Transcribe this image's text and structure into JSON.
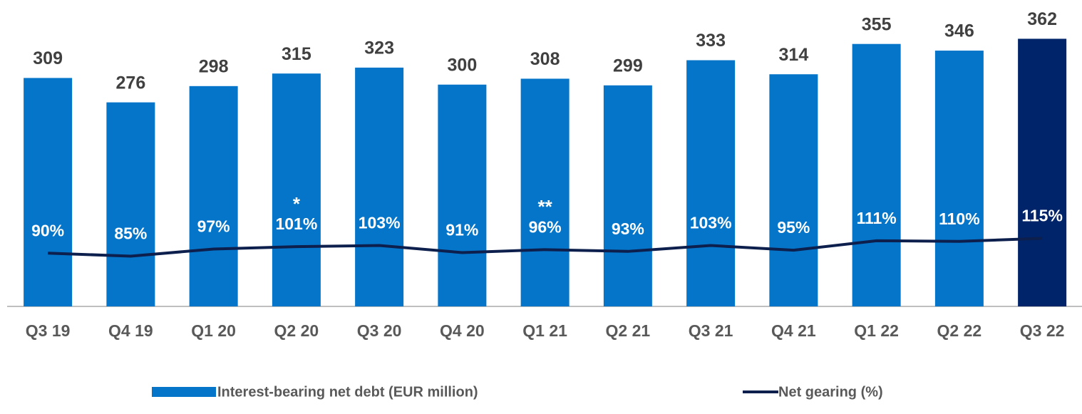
{
  "chart_data": {
    "type": "bar",
    "categories": [
      "Q3 19",
      "Q4 19",
      "Q1 20",
      "Q2 20",
      "Q3 20",
      "Q4 20",
      "Q1 21",
      "Q2 21",
      "Q3 21",
      "Q4 21",
      "Q1 22",
      "Q2 22",
      "Q3 22"
    ],
    "series": [
      {
        "name": "Interest-bearing net debt (EUR million)",
        "type": "bar",
        "color": "#0575c9",
        "colors": [
          "#0575c9",
          "#0575c9",
          "#0575c9",
          "#0575c9",
          "#0575c9",
          "#0575c9",
          "#0575c9",
          "#0575c9",
          "#0575c9",
          "#0575c9",
          "#0575c9",
          "#0575c9",
          "#002469"
        ],
        "values": [
          309,
          276,
          298,
          315,
          323,
          300,
          308,
          299,
          333,
          314,
          355,
          346,
          362
        ]
      },
      {
        "name": "Net gearing (%)",
        "type": "line",
        "axis": "y2",
        "color": "#0d1f4d",
        "values": [
          90,
          85,
          97,
          101,
          103,
          91,
          96,
          93,
          103,
          95,
          111,
          110,
          115
        ],
        "value_labels": [
          "90%",
          "85%",
          "97%",
          "101%",
          "103%",
          "91%",
          "96%",
          "93%",
          "103%",
          "95%",
          "111%",
          "110%",
          "115%"
        ]
      }
    ],
    "annotations": [
      {
        "text": "*",
        "x": "Q2 20"
      },
      {
        "text": "**",
        "x": "Q1 21"
      }
    ],
    "ylim": [
      0,
      400
    ],
    "y2lim": [
      0,
      500
    ]
  }
}
